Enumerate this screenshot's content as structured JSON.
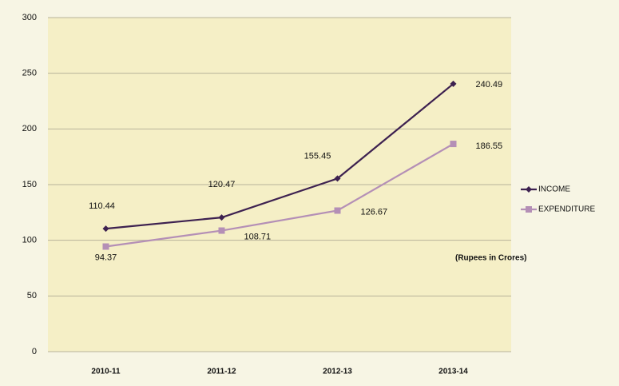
{
  "chart_data": {
    "type": "line",
    "categories": [
      "2010-11",
      "2011-12",
      "2012-13",
      "2013-14"
    ],
    "series": [
      {
        "name": "INCOME",
        "color": "#3d2150",
        "marker": "diamond",
        "values": [
          110.44,
          120.47,
          155.45,
          240.49
        ]
      },
      {
        "name": "EXPENDITURE",
        "color": "#b48fb6",
        "marker": "square",
        "values": [
          94.37,
          108.71,
          126.67,
          186.55
        ]
      }
    ],
    "ylim": [
      0,
      300
    ],
    "yticks": [
      0,
      50,
      100,
      150,
      200,
      250,
      300
    ],
    "grid": true,
    "legend": "right",
    "annotation": "(Rupees in Crores)"
  }
}
